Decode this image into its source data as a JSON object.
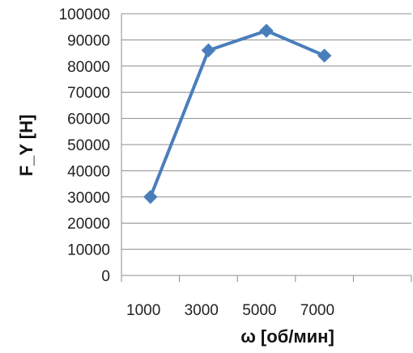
{
  "chart_data": {
    "type": "line",
    "title": "",
    "xlabel": "ω [об/мин]",
    "ylabel": "F_Y [Н]",
    "x_tick_labels": [
      "1000",
      "3000",
      "5000",
      "7000"
    ],
    "y_tick_labels": [
      "0",
      "10000",
      "20000",
      "30000",
      "40000",
      "50000",
      "60000",
      "70000",
      "80000",
      "90000",
      "100000"
    ],
    "ylim": [
      0,
      100000
    ],
    "grid": "horizontal",
    "legend": "none",
    "categories": [
      "1000",
      "3000",
      "5000",
      "7000"
    ],
    "series": [
      {
        "values": [
          30000,
          86000,
          93500,
          84000
        ],
        "color": "#4a7ebb",
        "marker": "diamond"
      }
    ]
  }
}
